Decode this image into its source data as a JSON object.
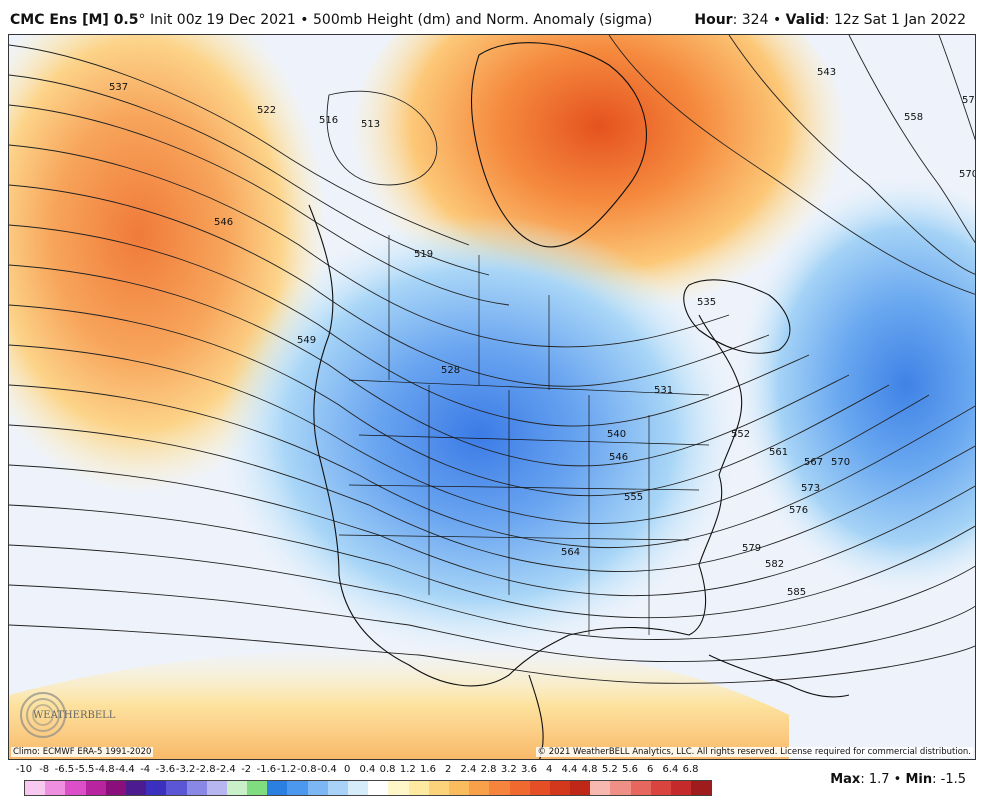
{
  "header": {
    "model": "CMC Ens [M] 0.5",
    "degree": "°",
    "init": "Init 00z 19 Dec 2021",
    "separator": "•",
    "field": "500mb Height (dm) and Norm. Anomaly (sigma)",
    "hour_label": "Hour",
    "hour_value": ": 324",
    "valid_label": "Valid",
    "valid_value": ": 12z Sat 1 Jan 2022"
  },
  "map": {
    "logo_text": "WEATHERBELL",
    "climo_note": "Climo: ECMWF ERA-5 1991-2020",
    "copyright": "© 2021 WeatherBELL Analytics, LLC. All rights reserved. License required for commercial distribution.",
    "contour_labels": [
      "537",
      "546",
      "522",
      "516",
      "513",
      "519",
      "528",
      "549",
      "531",
      "535",
      "543",
      "558",
      "573",
      "570",
      "552",
      "561",
      "567",
      "570",
      "573",
      "576",
      "579",
      "582",
      "585",
      "564",
      "555",
      "546",
      "540"
    ]
  },
  "legend": {
    "labels": [
      "-10",
      "-8",
      "-6.5",
      "-5.5",
      "-4.8",
      "-4.4",
      "-4",
      "-3.6",
      "-3.2",
      "-2.8",
      "-2.4",
      "-2",
      "-1.6",
      "-1.2",
      "-0.8",
      "-0.4",
      "0",
      "0.4",
      "0.8",
      "1.2",
      "1.6",
      "2",
      "2.4",
      "2.8",
      "3.2",
      "3.6",
      "4",
      "4.4",
      "4.8",
      "5.2",
      "5.6",
      "6",
      "6.4",
      "6.8"
    ],
    "colors": [
      "#f7c8f0",
      "#ee8fe0",
      "#dc4fc8",
      "#b8239e",
      "#8a0f7a",
      "#4b1b8f",
      "#3a2fbf",
      "#5a56d6",
      "#8a88e6",
      "#b7b6f0",
      "#c9f0c9",
      "#7fdc7f",
      "#2a7fe0",
      "#4c98ee",
      "#7cb6f4",
      "#a8d2f8",
      "#d6ecfb",
      "#ffffff",
      "#fff7c8",
      "#fde9a0",
      "#fcd37a",
      "#fbbc5e",
      "#f9a04a",
      "#f6843c",
      "#f06a2f",
      "#e64e25",
      "#d4381c",
      "#bf2716",
      "#f6b8b0",
      "#ef8f86",
      "#e6675e",
      "#d9453e",
      "#c52a2a",
      "#9e1c1c"
    ],
    "unit_note": "sigma"
  },
  "stats": {
    "max_label": "Max",
    "max_value": ": 1.7",
    "sep": "•",
    "min_label": "Min",
    "min_value": ": -1.5"
  }
}
